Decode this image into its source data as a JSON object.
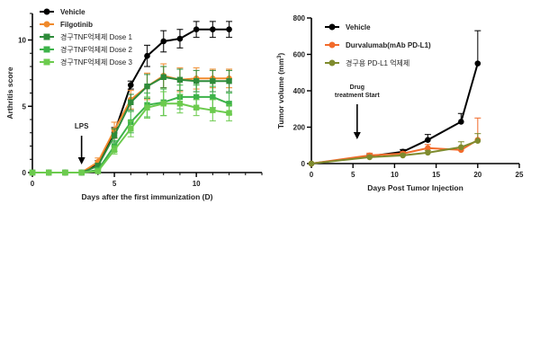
{
  "chart_data": [
    {
      "type": "line",
      "title": "",
      "xlabel": "Days after the first immunization (D)",
      "ylabel": "Arthritis score",
      "xlim": [
        0,
        14
      ],
      "ylim": [
        0,
        12
      ],
      "xticks": [
        0,
        5,
        10
      ],
      "xtick_labels": [
        "0",
        "5",
        "10"
      ],
      "yticks": [
        0,
        5,
        10
      ],
      "ytick_labels": [
        "0",
        "5",
        "10"
      ],
      "grid": false,
      "legend_position": "top-left",
      "annotations": [
        {
          "text": "LPS",
          "x": 3,
          "arrow": "down"
        }
      ],
      "x": [
        0,
        1,
        2,
        3,
        4,
        5,
        6,
        7,
        8,
        9,
        10,
        11,
        12
      ],
      "series": [
        {
          "name": "Vehicle",
          "color": "#000000",
          "marker": "circle",
          "values": [
            0,
            0,
            0,
            0,
            0.7,
            3.0,
            6.6,
            8.8,
            9.9,
            10.1,
            10.8,
            10.8,
            10.8
          ],
          "errors": [
            0,
            0,
            0,
            0,
            0.2,
            0.4,
            0.3,
            0.8,
            0.8,
            0.7,
            0.6,
            0.6,
            0.6
          ]
        },
        {
          "name": "Filgotinib",
          "color": "#f08a2c",
          "marker": "circle",
          "values": [
            0,
            0,
            0,
            0,
            0.8,
            3.2,
            5.5,
            6.5,
            7.3,
            7.0,
            7.1,
            7.1,
            7.1
          ],
          "errors": [
            0,
            0,
            0,
            0,
            0.3,
            0.6,
            0.7,
            1.0,
            0.9,
            0.9,
            0.8,
            0.7,
            0.7
          ]
        },
        {
          "name": "경구TNF억제제 Dose 1",
          "color": "#2e8b3a",
          "marker": "square",
          "values": [
            0,
            0,
            0,
            0,
            0.5,
            2.8,
            5.3,
            6.5,
            7.2,
            7.0,
            6.9,
            6.9,
            6.9
          ],
          "errors": [
            0,
            0,
            0,
            0,
            0.2,
            0.5,
            0.6,
            0.9,
            0.8,
            0.8,
            0.8,
            0.8,
            0.8
          ]
        },
        {
          "name": "경구TNF억제제 Dose 2",
          "color": "#3db34a",
          "marker": "square",
          "values": [
            0,
            0,
            0,
            0,
            0.2,
            2.0,
            3.8,
            5.1,
            5.3,
            5.7,
            5.7,
            5.7,
            5.2
          ],
          "errors": [
            0,
            0,
            0,
            0,
            0.1,
            0.4,
            0.8,
            0.9,
            1.0,
            0.9,
            0.9,
            0.8,
            0.8
          ]
        },
        {
          "name": "경구TNF억제제 Dose 3",
          "color": "#6ccb4e",
          "marker": "square",
          "values": [
            0,
            0,
            0,
            0,
            0.1,
            1.7,
            3.3,
            4.9,
            5.2,
            5.2,
            4.9,
            4.7,
            4.5
          ],
          "errors": [
            0,
            0,
            0,
            0,
            0.1,
            0.3,
            0.6,
            0.8,
            0.9,
            0.7,
            0.6,
            0.8,
            0.6
          ]
        }
      ]
    },
    {
      "type": "line",
      "title": "",
      "xlabel": "Days Post Tumor Injection",
      "ylabel": "Tumor volume (mm³)",
      "ylabel_parts": {
        "main": "Tumor volume (mm",
        "sup": "3",
        "end": ")"
      },
      "xlim": [
        0,
        25
      ],
      "ylim": [
        0,
        800
      ],
      "xticks": [
        0,
        5,
        10,
        15,
        20,
        25
      ],
      "xtick_labels": [
        "0",
        "5",
        "10",
        "15",
        "20",
        "25"
      ],
      "yticks": [
        0,
        200,
        400,
        600,
        800
      ],
      "ytick_labels": [
        "0",
        "200",
        "400",
        "600",
        "800"
      ],
      "grid": false,
      "legend_position": "top-left",
      "annotations": [
        {
          "text_lines": [
            "Drug",
            "treatment Start"
          ],
          "x": 5.5,
          "arrow": "down"
        }
      ],
      "x": [
        0,
        7,
        11,
        14,
        18,
        20
      ],
      "series": [
        {
          "name": "Vehicle",
          "color": "#000000",
          "marker": "circle",
          "values": [
            0,
            40,
            65,
            130,
            230,
            550
          ],
          "errors": [
            0,
            10,
            12,
            30,
            45,
            180
          ]
        },
        {
          "name": "Durvalumab(mAb PD-L1)",
          "color": "#f26b2b",
          "marker": "circle",
          "values": [
            0,
            45,
            55,
            85,
            75,
            130
          ],
          "errors": [
            0,
            12,
            10,
            20,
            15,
            120
          ]
        },
        {
          "name": "경구용 PD-L1 억제제",
          "color": "#7f8b2e",
          "marker": "circle",
          "values": [
            0,
            35,
            45,
            60,
            90,
            125
          ],
          "errors": [
            0,
            8,
            8,
            12,
            30,
            40
          ]
        }
      ]
    }
  ]
}
